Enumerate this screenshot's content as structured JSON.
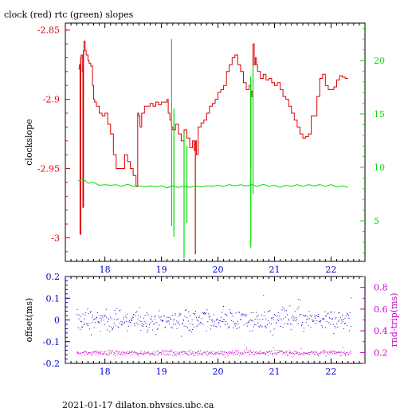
{
  "title": "clock (red) rtc (green) slopes",
  "footer": "2021-01-17  dilaton.physics.ubc.ca",
  "colors": {
    "red": "#dd0000",
    "green": "#00dd00",
    "blue": "#0000cc",
    "magenta": "#cc00cc",
    "axis": "#000000"
  },
  "chart_data": [
    {
      "type": "line",
      "title": "clock (red) rtc (green) slopes",
      "xlabel": "",
      "ylabel": "clockslope",
      "ylabel_right": "",
      "xlim": [
        17.3,
        22.6
      ],
      "ylim": [
        -3.017,
        -2.845
      ],
      "ylim_right": [
        1.2,
        23.5
      ],
      "x_ticks": [
        18,
        19,
        20,
        21,
        22
      ],
      "y_ticks": [
        -2.85,
        -2.9,
        -2.95,
        -3
      ],
      "y_tick_labels": [
        "-2.85",
        "-2.9",
        "-2.95",
        "-3"
      ],
      "y_ticks_right": [
        5,
        10,
        15,
        20
      ],
      "grid": false,
      "legend": "none",
      "series": [
        {
          "axis": "left",
          "color": "#dd0000",
          "x": [
            17.53,
            17.55,
            17.56,
            17.57,
            17.58,
            17.6,
            17.61,
            17.62,
            17.63,
            17.65,
            17.67,
            17.7,
            17.72,
            17.75,
            17.78,
            17.8,
            17.82,
            17.85,
            17.9,
            17.95,
            18.0,
            18.05,
            18.1,
            18.15,
            18.2,
            18.25,
            18.3,
            18.35,
            18.4,
            18.45,
            18.5,
            18.55,
            18.58,
            18.6,
            18.62,
            18.65,
            18.7,
            18.75,
            18.8,
            18.85,
            18.9,
            18.95,
            19.0,
            19.05,
            19.1,
            19.12,
            19.15,
            19.18,
            19.2,
            19.25,
            19.3,
            19.35,
            19.4,
            19.45,
            19.5,
            19.55,
            19.58,
            19.6,
            19.62,
            19.65,
            19.7,
            19.75,
            19.8,
            19.85,
            19.9,
            19.95,
            20.0,
            20.05,
            20.1,
            20.15,
            20.2,
            20.25,
            20.3,
            20.35,
            20.4,
            20.45,
            20.5,
            20.55,
            20.58,
            20.6,
            20.62,
            20.64,
            20.66,
            20.68,
            20.7,
            20.75,
            20.8,
            20.85,
            20.9,
            20.95,
            21.0,
            21.05,
            21.1,
            21.15,
            21.2,
            21.25,
            21.3,
            21.35,
            21.4,
            21.45,
            21.5,
            21.55,
            21.6,
            21.65,
            21.7,
            21.75,
            21.8,
            21.85,
            21.9,
            21.95,
            22.0,
            22.05,
            22.1,
            22.15,
            22.2,
            22.25,
            22.3
          ],
          "y": [
            -2.878,
            -2.875,
            -2.997,
            -2.87,
            -2.868,
            -2.88,
            -2.978,
            -2.865,
            -2.858,
            -2.865,
            -2.868,
            -2.872,
            -2.874,
            -2.876,
            -2.89,
            -2.9,
            -2.902,
            -2.905,
            -2.91,
            -2.912,
            -2.91,
            -2.918,
            -2.925,
            -2.94,
            -2.95,
            -2.95,
            -2.95,
            -2.94,
            -2.945,
            -2.95,
            -2.955,
            -2.963,
            -2.91,
            -2.912,
            -2.92,
            -2.91,
            -2.905,
            -2.905,
            -2.903,
            -2.905,
            -2.902,
            -2.904,
            -2.902,
            -2.902,
            -2.9,
            -2.91,
            -2.915,
            -2.92,
            -2.922,
            -2.918,
            -2.925,
            -2.93,
            -2.922,
            -2.928,
            -2.935,
            -2.93,
            -2.937,
            -2.93,
            -2.94,
            -2.92,
            -2.917,
            -2.915,
            -2.91,
            -2.905,
            -2.903,
            -2.9,
            -2.895,
            -2.893,
            -2.89,
            -2.88,
            -2.875,
            -2.87,
            -2.868,
            -2.875,
            -2.88,
            -2.888,
            -2.893,
            -2.89,
            -2.894,
            -2.898,
            -2.86,
            -2.875,
            -2.87,
            -2.875,
            -2.88,
            -2.885,
            -2.882,
            -2.886,
            -2.885,
            -2.888,
            -2.89,
            -2.888,
            -2.893,
            -2.898,
            -2.9,
            -2.905,
            -2.91,
            -2.915,
            -2.92,
            -2.925,
            -2.928,
            -2.927,
            -2.925,
            -2.912,
            -2.912,
            -2.898,
            -2.885,
            -2.882,
            -2.89,
            -2.893,
            -2.893,
            -2.891,
            -2.886,
            -2.883,
            -2.884,
            -2.885,
            -2.885
          ],
          "spikes": [
            {
              "x": 17.57,
              "to": -2.998
            },
            {
              "x": 17.62,
              "to": -2.978
            },
            {
              "x": 19.6,
              "to": -3.012
            },
            {
              "x": 20.58,
              "to": -2.95
            }
          ]
        },
        {
          "axis": "right",
          "color": "#00dd00",
          "x": [
            17.53,
            17.6,
            17.7,
            17.8,
            17.9,
            18.0,
            18.1,
            18.2,
            18.3,
            18.4,
            18.5,
            18.6,
            18.7,
            18.8,
            18.9,
            19.0,
            19.1,
            19.2,
            19.3,
            19.4,
            19.5,
            19.6,
            19.7,
            19.8,
            19.9,
            20.0,
            20.1,
            20.2,
            20.3,
            20.4,
            20.5,
            20.6,
            20.7,
            20.8,
            20.9,
            21.0,
            21.1,
            21.2,
            21.3,
            21.4,
            21.5,
            21.6,
            21.7,
            21.8,
            21.9,
            22.0,
            22.1,
            22.2,
            22.3
          ],
          "y": [
            8.8,
            8.9,
            8.6,
            8.5,
            8.4,
            8.3,
            8.4,
            8.3,
            8.3,
            8.35,
            8.3,
            8.2,
            8.25,
            8.2,
            8.25,
            8.2,
            8.15,
            8.2,
            8.2,
            8.15,
            8.2,
            8.2,
            8.25,
            8.2,
            8.3,
            8.25,
            8.3,
            8.3,
            8.35,
            8.3,
            8.35,
            8.3,
            8.3,
            8.35,
            8.3,
            8.25,
            8.2,
            8.25,
            8.3,
            8.3,
            8.3,
            8.3,
            8.35,
            8.3,
            8.3,
            8.3,
            8.25,
            8.2,
            8.2
          ],
          "spikes": [
            {
              "x": 19.18,
              "from": 4.5,
              "to": 22.0
            },
            {
              "x": 19.22,
              "from": 3.5,
              "to": 15.5
            },
            {
              "x": 19.4,
              "from": 1.5,
              "to": 13.2
            },
            {
              "x": 19.45,
              "from": 4.8,
              "to": 12.0
            },
            {
              "x": 20.58,
              "from": 2.5,
              "to": 18.5
            },
            {
              "x": 20.62,
              "from": 7.5,
              "to": 19.5
            }
          ]
        }
      ]
    },
    {
      "type": "scatter",
      "title": "",
      "xlabel": "",
      "ylabel": "offset(ms)",
      "ylabel_right": "rnd-trip(ms)",
      "xlim": [
        17.3,
        22.6
      ],
      "ylim": [
        -0.2,
        0.2
      ],
      "ylim_right": [
        0.1,
        0.9
      ],
      "x_ticks": [
        18,
        19,
        20,
        21,
        22
      ],
      "y_ticks": [
        0.2,
        0.1,
        0,
        -0.1,
        -0.2
      ],
      "y_tick_labels": [
        "0.2",
        "0.1",
        "0",
        "-0.1",
        "-0.2"
      ],
      "y_ticks_right": [
        0.2,
        0.4,
        0.6,
        0.8
      ],
      "y_tick_labels_right": [
        "0.2",
        "0.4",
        "0.6",
        "0.8"
      ],
      "grid": false,
      "legend": "none",
      "series": [
        {
          "axis": "left",
          "color": "#0000cc",
          "x_range": [
            17.5,
            22.35
          ],
          "center": 0.0,
          "spread": 0.025,
          "count": 500
        },
        {
          "axis": "right",
          "color": "#cc00cc",
          "x_range": [
            17.5,
            22.35
          ],
          "center": 0.2,
          "spread": 0.012,
          "count": 500
        }
      ]
    }
  ]
}
